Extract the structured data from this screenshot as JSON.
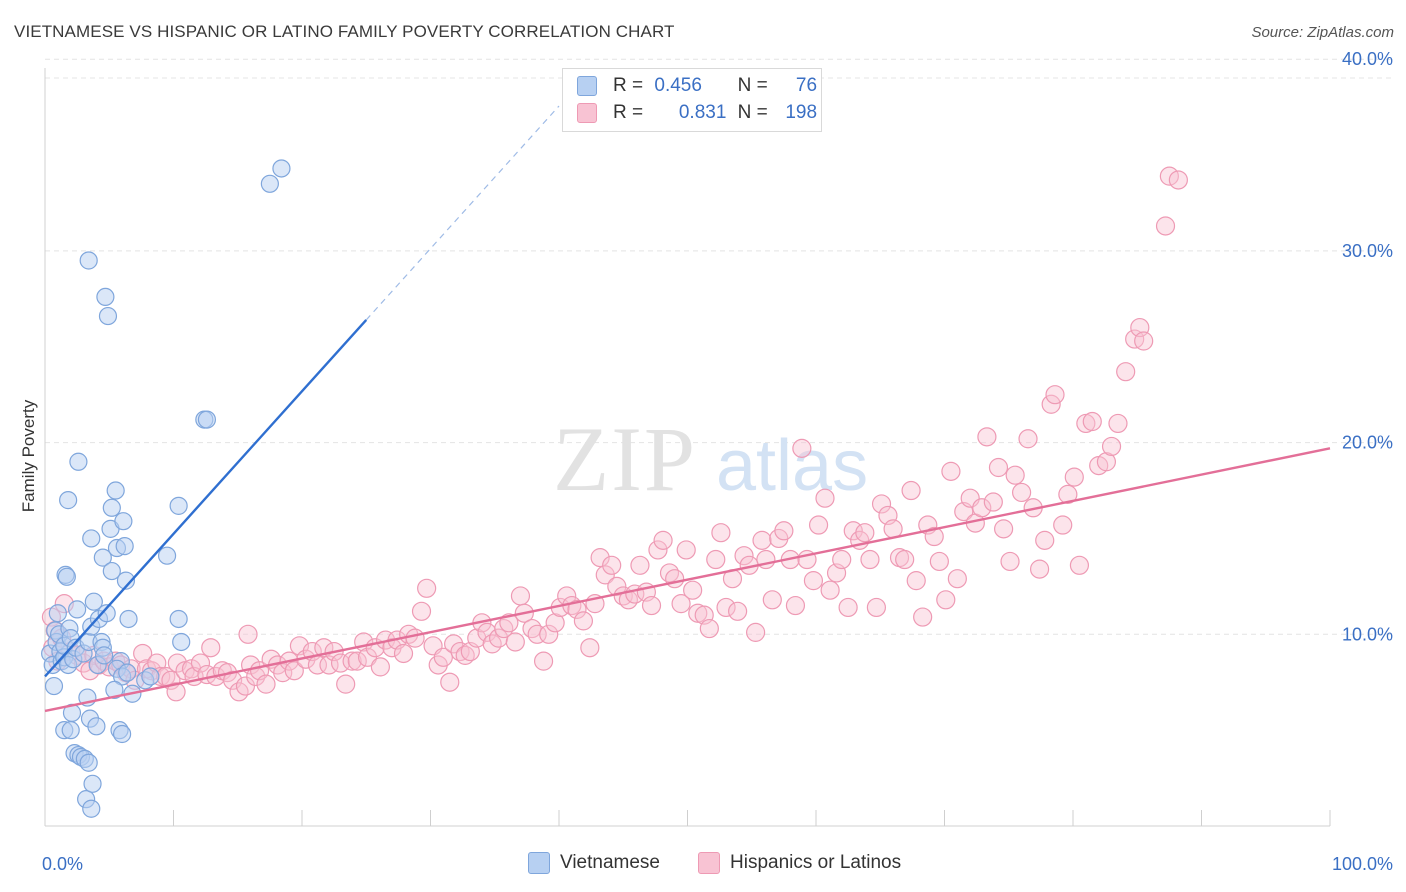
{
  "header": {
    "title": "VIETNAMESE VS HISPANIC OR LATINO FAMILY POVERTY CORRELATION CHART",
    "source": "Source: ZipAtlas.com"
  },
  "watermark": {
    "zip": "ZIP",
    "atlas": "atlas"
  },
  "legend": {
    "rows": [
      {
        "r_label": "R =",
        "r_value": "0.456",
        "n_label": "N =",
        "n_value": "76"
      },
      {
        "r_label": "R =",
        "r_value": "0.831",
        "n_label": "N =",
        "n_value": "198"
      }
    ],
    "bottom": [
      "Vietnamese",
      "Hispanics or Latinos"
    ]
  },
  "colors": {
    "blue_fill": "#b7d0f2",
    "blue_stroke": "#7fa6dc",
    "blue_line": "#2f6fd0",
    "pink_fill": "#f8c3d3",
    "pink_stroke": "#ee9ab4",
    "pink_line": "#e36f98",
    "axis_label": "#3a6fc4"
  },
  "chart_data": {
    "type": "scatter",
    "title": "VIETNAMESE VS HISPANIC OR LATINO FAMILY POVERTY CORRELATION CHART",
    "xlabel": "",
    "ylabel": "Family Poverty",
    "xlim": [
      0,
      100
    ],
    "ylim": [
      0,
      42
    ],
    "x_tick_labels": [
      "0.0%",
      "100.0%"
    ],
    "y_ticks": [
      10,
      20,
      30,
      40
    ],
    "y_tick_labels": [
      "10.0%",
      "20.0%",
      "30.0%",
      "40.0%"
    ],
    "grid": "horizontal dashed",
    "legend_position": "top-center",
    "series": [
      {
        "name": "Vietnamese",
        "r": 0.456,
        "n": 76,
        "trend": {
          "x0": 0,
          "y0": 7.8,
          "x1": 25,
          "y1": 26.4,
          "dash_to_x": 40
        },
        "points": [
          [
            0.4,
            9.0
          ],
          [
            0.6,
            8.4
          ],
          [
            0.7,
            7.3
          ],
          [
            0.8,
            10.2
          ],
          [
            0.9,
            9.6
          ],
          [
            1.0,
            11.1
          ],
          [
            1.2,
            9.1
          ],
          [
            1.3,
            8.6
          ],
          [
            1.1,
            10.0
          ],
          [
            1.5,
            8.8
          ],
          [
            1.6,
            13.1
          ],
          [
            1.7,
            13.0
          ],
          [
            1.5,
            9.4
          ],
          [
            1.9,
            10.3
          ],
          [
            2.0,
            9.8
          ],
          [
            1.8,
            8.4
          ],
          [
            2.2,
            8.7
          ],
          [
            2.4,
            9.3
          ],
          [
            2.5,
            11.3
          ],
          [
            2.6,
            19.0
          ],
          [
            1.8,
            17.0
          ],
          [
            2.1,
            5.9
          ],
          [
            1.5,
            5.0
          ],
          [
            2.0,
            5.0
          ],
          [
            2.3,
            3.8
          ],
          [
            2.6,
            3.7
          ],
          [
            2.8,
            3.6
          ],
          [
            3.1,
            3.5
          ],
          [
            3.4,
            3.3
          ],
          [
            3.2,
            1.4
          ],
          [
            3.6,
            0.9
          ],
          [
            3.7,
            2.2
          ],
          [
            3.0,
            9.0
          ],
          [
            3.4,
            9.6
          ],
          [
            3.6,
            10.4
          ],
          [
            3.8,
            11.7
          ],
          [
            3.3,
            6.7
          ],
          [
            3.5,
            5.6
          ],
          [
            4.0,
            5.2
          ],
          [
            4.1,
            8.4
          ],
          [
            4.4,
            9.6
          ],
          [
            4.5,
            9.3
          ],
          [
            4.6,
            8.9
          ],
          [
            4.2,
            10.8
          ],
          [
            4.8,
            11.1
          ],
          [
            4.5,
            14.0
          ],
          [
            3.6,
            15.0
          ],
          [
            3.4,
            29.5
          ],
          [
            4.7,
            27.6
          ],
          [
            4.9,
            26.6
          ],
          [
            5.2,
            16.6
          ],
          [
            5.1,
            15.5
          ],
          [
            5.5,
            17.5
          ],
          [
            5.6,
            14.5
          ],
          [
            5.2,
            13.3
          ],
          [
            6.1,
            15.9
          ],
          [
            6.2,
            14.6
          ],
          [
            6.5,
            10.8
          ],
          [
            6.3,
            12.8
          ],
          [
            5.9,
            8.6
          ],
          [
            5.6,
            8.2
          ],
          [
            6.0,
            7.8
          ],
          [
            6.4,
            8.0
          ],
          [
            6.8,
            6.9
          ],
          [
            5.4,
            7.1
          ],
          [
            5.8,
            5.0
          ],
          [
            6.0,
            4.8
          ],
          [
            7.8,
            7.6
          ],
          [
            8.2,
            7.8
          ],
          [
            9.5,
            14.1
          ],
          [
            10.4,
            16.7
          ],
          [
            10.4,
            10.8
          ],
          [
            10.6,
            9.6
          ],
          [
            12.4,
            21.2
          ],
          [
            12.6,
            21.2
          ],
          [
            17.5,
            33.5
          ],
          [
            18.4,
            34.3
          ]
        ]
      },
      {
        "name": "Hispanics or Latinos",
        "r": 0.831,
        "n": 198,
        "trend": {
          "x0": 0,
          "y0": 6.0,
          "x1": 100,
          "y1": 19.7
        },
        "points": [
          [
            0.5,
            10.9
          ],
          [
            0.6,
            9.3
          ],
          [
            0.8,
            10.2
          ],
          [
            1.0,
            8.6
          ],
          [
            1.3,
            9.8
          ],
          [
            1.5,
            11.6
          ],
          [
            2.0,
            9.1
          ],
          [
            2.5,
            8.9
          ],
          [
            3.0,
            8.5
          ],
          [
            3.5,
            8.1
          ],
          [
            3.8,
            8.9
          ],
          [
            4.2,
            8.4
          ],
          [
            4.6,
            8.6
          ],
          [
            5.0,
            8.3
          ],
          [
            5.5,
            8.6
          ],
          [
            5.9,
            8.4
          ],
          [
            6.3,
            8.0
          ],
          [
            6.7,
            8.2
          ],
          [
            7.0,
            7.6
          ],
          [
            7.6,
            9.0
          ],
          [
            7.9,
            8.2
          ],
          [
            8.3,
            8.1
          ],
          [
            8.7,
            8.5
          ],
          [
            9.0,
            7.8
          ],
          [
            9.4,
            7.8
          ],
          [
            9.8,
            7.6
          ],
          [
            10.3,
            8.5
          ],
          [
            10.2,
            7.0
          ],
          [
            10.9,
            8.1
          ],
          [
            11.4,
            8.2
          ],
          [
            11.6,
            7.8
          ],
          [
            12.1,
            8.5
          ],
          [
            12.6,
            7.9
          ],
          [
            12.9,
            9.3
          ],
          [
            13.3,
            7.8
          ],
          [
            13.8,
            8.1
          ],
          [
            14.2,
            8.0
          ],
          [
            14.6,
            7.6
          ],
          [
            15.1,
            7.0
          ],
          [
            15.6,
            7.3
          ],
          [
            16.0,
            8.4
          ],
          [
            15.8,
            10.0
          ],
          [
            16.4,
            7.8
          ],
          [
            16.7,
            8.1
          ],
          [
            17.2,
            7.4
          ],
          [
            17.6,
            8.7
          ],
          [
            18.1,
            8.4
          ],
          [
            18.5,
            8.0
          ],
          [
            19.0,
            8.6
          ],
          [
            19.4,
            8.1
          ],
          [
            19.8,
            9.4
          ],
          [
            20.3,
            8.7
          ],
          [
            20.8,
            9.1
          ],
          [
            21.2,
            8.4
          ],
          [
            21.7,
            9.3
          ],
          [
            22.1,
            8.4
          ],
          [
            22.5,
            9.1
          ],
          [
            23.0,
            8.5
          ],
          [
            23.4,
            7.4
          ],
          [
            23.9,
            8.6
          ],
          [
            24.3,
            8.6
          ],
          [
            24.8,
            9.6
          ],
          [
            25.1,
            8.8
          ],
          [
            25.7,
            9.3
          ],
          [
            26.1,
            8.3
          ],
          [
            26.5,
            9.7
          ],
          [
            27.0,
            9.3
          ],
          [
            27.4,
            9.7
          ],
          [
            27.9,
            9.0
          ],
          [
            28.3,
            10.0
          ],
          [
            28.8,
            9.8
          ],
          [
            29.3,
            11.2
          ],
          [
            29.7,
            12.4
          ],
          [
            30.2,
            9.4
          ],
          [
            30.6,
            8.4
          ],
          [
            31.0,
            8.8
          ],
          [
            31.5,
            7.5
          ],
          [
            31.8,
            9.5
          ],
          [
            32.3,
            9.1
          ],
          [
            32.7,
            8.9
          ],
          [
            33.1,
            9.1
          ],
          [
            33.6,
            9.8
          ],
          [
            34.0,
            10.6
          ],
          [
            34.4,
            10.1
          ],
          [
            34.8,
            9.5
          ],
          [
            35.3,
            9.8
          ],
          [
            35.7,
            10.3
          ],
          [
            36.1,
            10.6
          ],
          [
            36.6,
            9.6
          ],
          [
            37.0,
            12.0
          ],
          [
            37.3,
            11.1
          ],
          [
            37.9,
            10.3
          ],
          [
            38.3,
            10.0
          ],
          [
            38.8,
            8.6
          ],
          [
            39.2,
            10.0
          ],
          [
            39.7,
            10.6
          ],
          [
            40.1,
            11.4
          ],
          [
            40.6,
            12.0
          ],
          [
            41.0,
            11.5
          ],
          [
            41.4,
            11.3
          ],
          [
            41.9,
            10.7
          ],
          [
            42.4,
            9.3
          ],
          [
            42.8,
            11.6
          ],
          [
            43.2,
            14.0
          ],
          [
            43.6,
            13.1
          ],
          [
            44.1,
            13.6
          ],
          [
            44.5,
            12.5
          ],
          [
            45.0,
            12.0
          ],
          [
            45.4,
            11.8
          ],
          [
            45.9,
            12.1
          ],
          [
            46.3,
            13.6
          ],
          [
            46.8,
            12.2
          ],
          [
            47.2,
            11.5
          ],
          [
            47.7,
            14.4
          ],
          [
            48.1,
            14.9
          ],
          [
            48.6,
            13.2
          ],
          [
            49.0,
            12.9
          ],
          [
            49.5,
            11.6
          ],
          [
            49.9,
            14.4
          ],
          [
            50.4,
            12.3
          ],
          [
            50.8,
            11.1
          ],
          [
            51.3,
            11.0
          ],
          [
            51.7,
            10.3
          ],
          [
            52.2,
            13.9
          ],
          [
            52.6,
            15.3
          ],
          [
            53.0,
            11.4
          ],
          [
            53.5,
            12.9
          ],
          [
            53.9,
            11.2
          ],
          [
            54.4,
            14.1
          ],
          [
            54.8,
            13.6
          ],
          [
            55.3,
            10.1
          ],
          [
            55.8,
            14.9
          ],
          [
            56.1,
            13.9
          ],
          [
            56.6,
            11.8
          ],
          [
            57.1,
            15.0
          ],
          [
            57.5,
            15.4
          ],
          [
            58.0,
            13.9
          ],
          [
            58.4,
            11.5
          ],
          [
            58.9,
            19.7
          ],
          [
            59.3,
            13.9
          ],
          [
            59.8,
            12.8
          ],
          [
            60.2,
            15.7
          ],
          [
            60.7,
            17.1
          ],
          [
            61.1,
            12.3
          ],
          [
            61.6,
            13.2
          ],
          [
            62.0,
            13.9
          ],
          [
            62.5,
            11.4
          ],
          [
            62.9,
            15.4
          ],
          [
            63.4,
            14.9
          ],
          [
            63.8,
            15.3
          ],
          [
            64.2,
            13.9
          ],
          [
            64.7,
            11.4
          ],
          [
            65.1,
            16.8
          ],
          [
            65.6,
            16.2
          ],
          [
            66.0,
            15.5
          ],
          [
            66.5,
            14.0
          ],
          [
            66.9,
            13.9
          ],
          [
            67.4,
            17.5
          ],
          [
            67.8,
            12.8
          ],
          [
            68.3,
            10.9
          ],
          [
            68.7,
            15.7
          ],
          [
            69.2,
            15.1
          ],
          [
            69.6,
            13.8
          ],
          [
            70.1,
            11.8
          ],
          [
            70.5,
            18.5
          ],
          [
            71.0,
            12.9
          ],
          [
            71.5,
            16.4
          ],
          [
            72.0,
            17.1
          ],
          [
            72.4,
            15.8
          ],
          [
            72.9,
            16.6
          ],
          [
            73.3,
            20.3
          ],
          [
            73.8,
            16.9
          ],
          [
            74.2,
            18.7
          ],
          [
            74.6,
            15.5
          ],
          [
            75.1,
            13.8
          ],
          [
            75.5,
            18.3
          ],
          [
            76.0,
            17.4
          ],
          [
            76.5,
            20.2
          ],
          [
            76.9,
            16.6
          ],
          [
            77.4,
            13.4
          ],
          [
            77.8,
            14.9
          ],
          [
            78.3,
            22.0
          ],
          [
            78.6,
            22.5
          ],
          [
            79.2,
            15.7
          ],
          [
            79.6,
            17.3
          ],
          [
            80.1,
            18.2
          ],
          [
            80.5,
            13.6
          ],
          [
            81.0,
            21.0
          ],
          [
            81.5,
            21.1
          ],
          [
            82.0,
            18.8
          ],
          [
            82.6,
            19.0
          ],
          [
            83.0,
            19.8
          ],
          [
            83.5,
            21.0
          ],
          [
            84.1,
            23.7
          ],
          [
            84.8,
            25.4
          ],
          [
            85.2,
            26.0
          ],
          [
            85.5,
            25.3
          ],
          [
            87.2,
            31.3
          ],
          [
            87.5,
            33.9
          ],
          [
            88.2,
            33.7
          ]
        ]
      }
    ]
  }
}
